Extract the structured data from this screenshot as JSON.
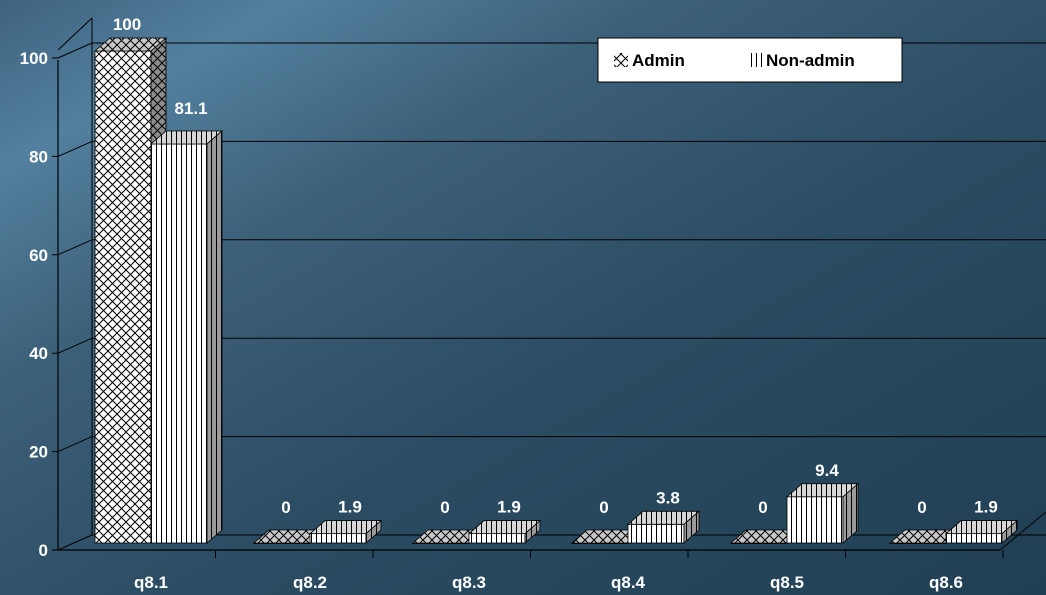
{
  "chart_data": {
    "type": "bar",
    "categories": [
      "q8.1",
      "q8.2",
      "q8.3",
      "q8.4",
      "q8.5",
      "q8.6"
    ],
    "series": [
      {
        "name": "Admin",
        "values": [
          100,
          0,
          0,
          0,
          0,
          0
        ],
        "labels": [
          "100",
          "0",
          "0",
          "0",
          "0",
          "0"
        ]
      },
      {
        "name": "Non-admin",
        "values": [
          81.1,
          1.9,
          1.9,
          3.8,
          9.4,
          1.9
        ],
        "labels": [
          "81.1",
          "1.9",
          "1.9",
          "3.8",
          "9.4",
          "1.9"
        ]
      }
    ],
    "yticks": [
      "0",
      "20",
      "40",
      "60",
      "80",
      "100"
    ],
    "ylim": [
      0,
      100
    ],
    "grid": true,
    "legend": "top-right",
    "title": "",
    "xlabel": "",
    "ylabel": "",
    "colors": {
      "bar_fill": "#ffffff",
      "bar_side": "#9a9a9a",
      "bar_top": "#d6d6d6",
      "grid": "#000000",
      "background": "#2b4c62"
    }
  }
}
